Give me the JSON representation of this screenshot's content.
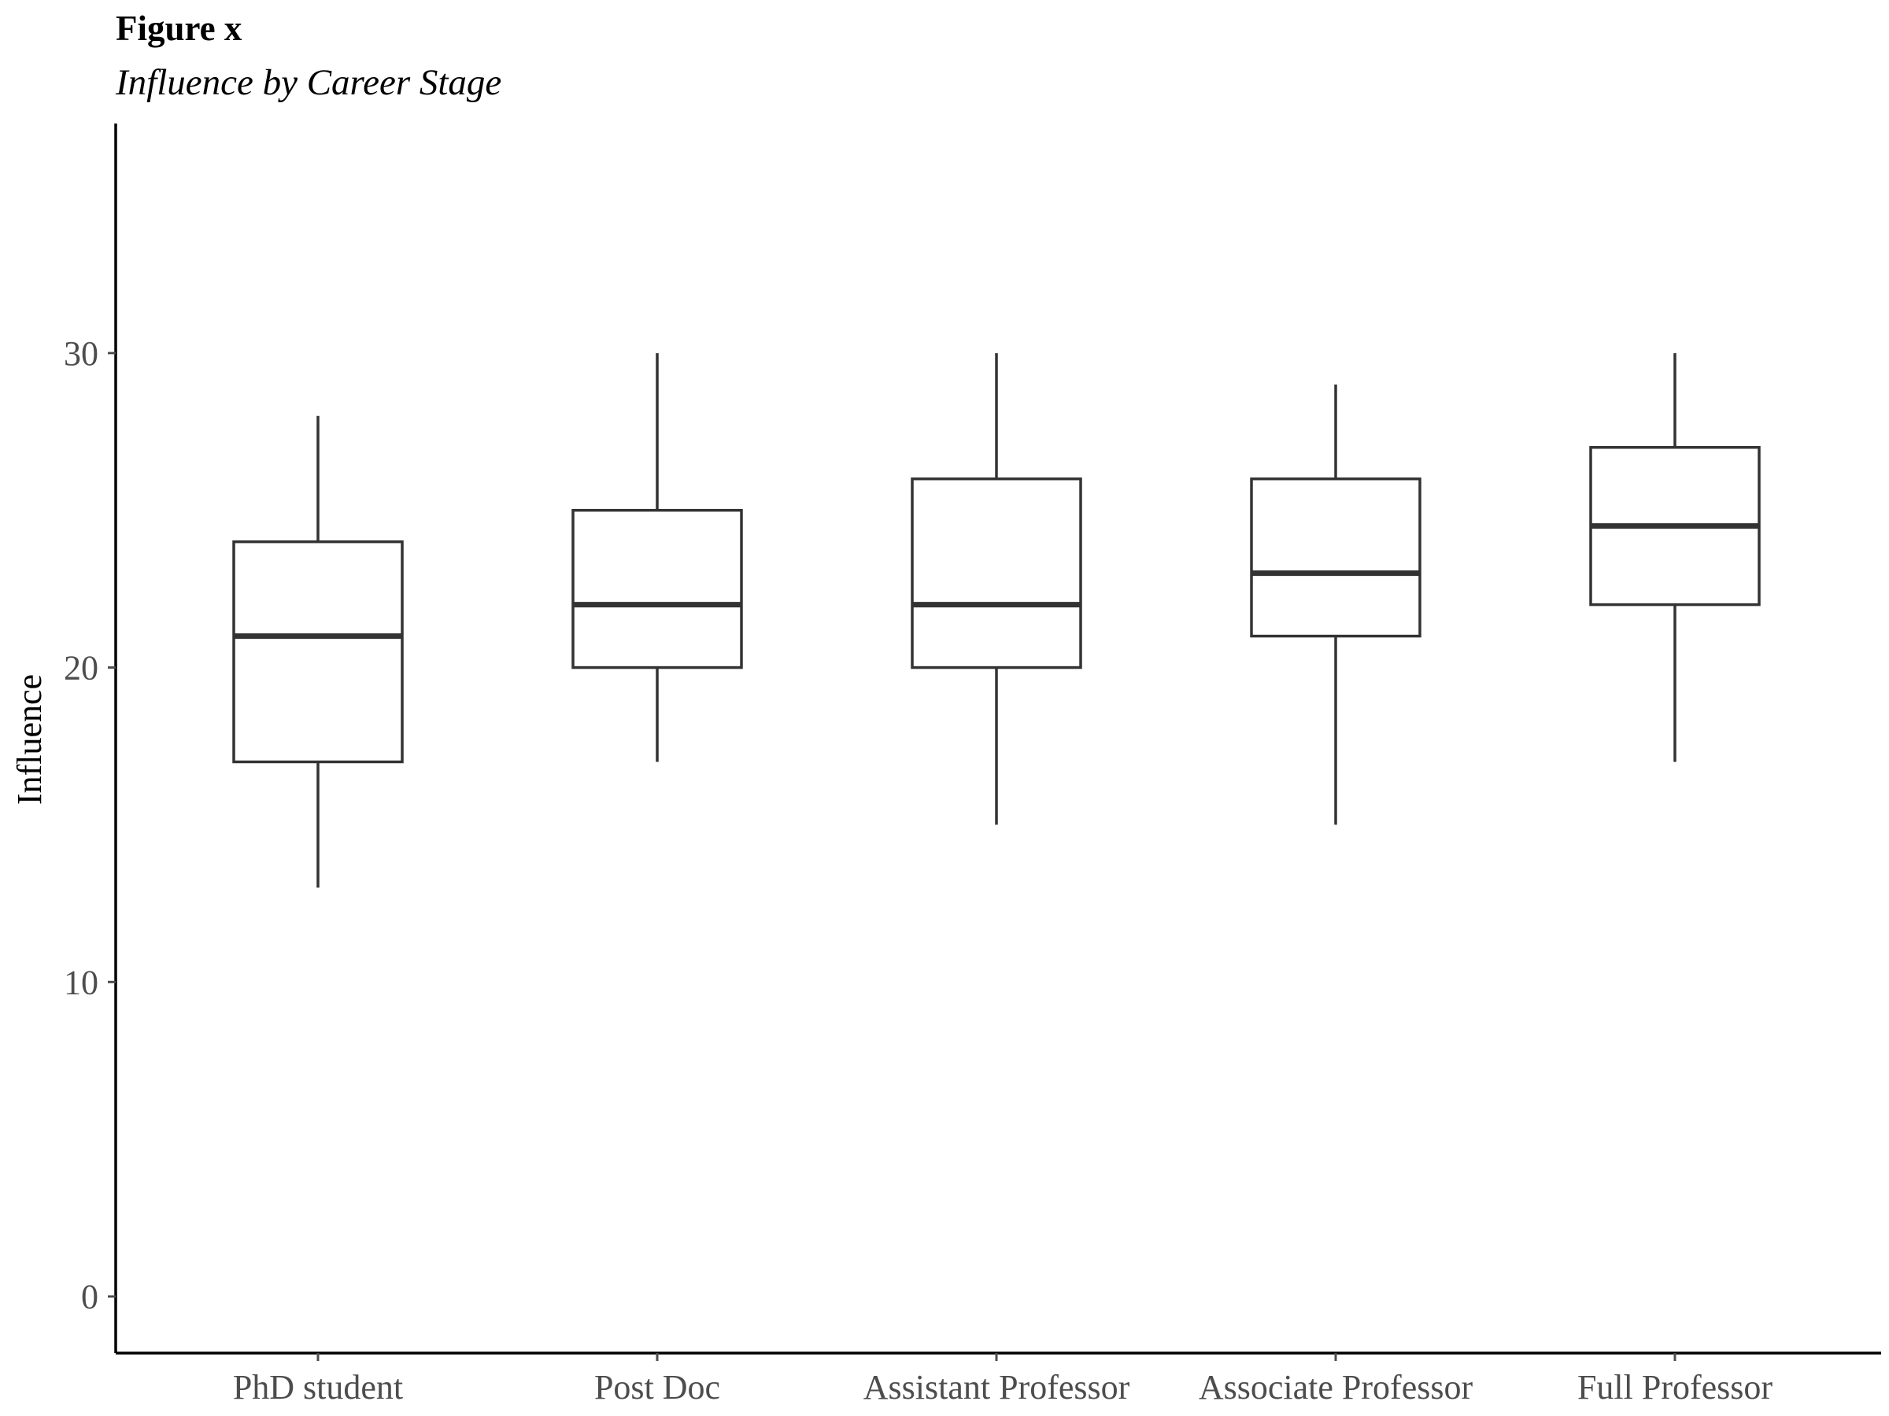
{
  "figure": {
    "label": "Figure x",
    "caption": "Influence by Career Stage"
  },
  "chart_data": {
    "type": "boxplot",
    "title": "",
    "xlabel": "",
    "ylabel": "Influence",
    "ylim": [
      -1.8,
      37.3
    ],
    "yticks": [
      0,
      10,
      20,
      30
    ],
    "grid": false,
    "legend": "none",
    "colors": {
      "box_stroke": "#333333",
      "box_fill": "#ffffff",
      "axis": "#000000",
      "tick_label": "#4d4d4d"
    },
    "categories": [
      "PhD student",
      "Post Doc",
      "Assistant Professor",
      "Associate Professor",
      "Full Professor"
    ],
    "boxes": [
      {
        "category": "PhD student",
        "min": 13,
        "q1": 17,
        "median": 21,
        "q3": 24,
        "max": 28
      },
      {
        "category": "Post Doc",
        "min": 17,
        "q1": 20,
        "median": 22,
        "q3": 25,
        "max": 30
      },
      {
        "category": "Assistant Professor",
        "min": 15,
        "q1": 20,
        "median": 22,
        "q3": 26,
        "max": 30
      },
      {
        "category": "Associate Professor",
        "min": 15,
        "q1": 21,
        "median": 23,
        "q3": 26,
        "max": 29
      },
      {
        "category": "Full Professor",
        "min": 17,
        "q1": 22,
        "median": 24.5,
        "q3": 27,
        "max": 30
      }
    ]
  }
}
